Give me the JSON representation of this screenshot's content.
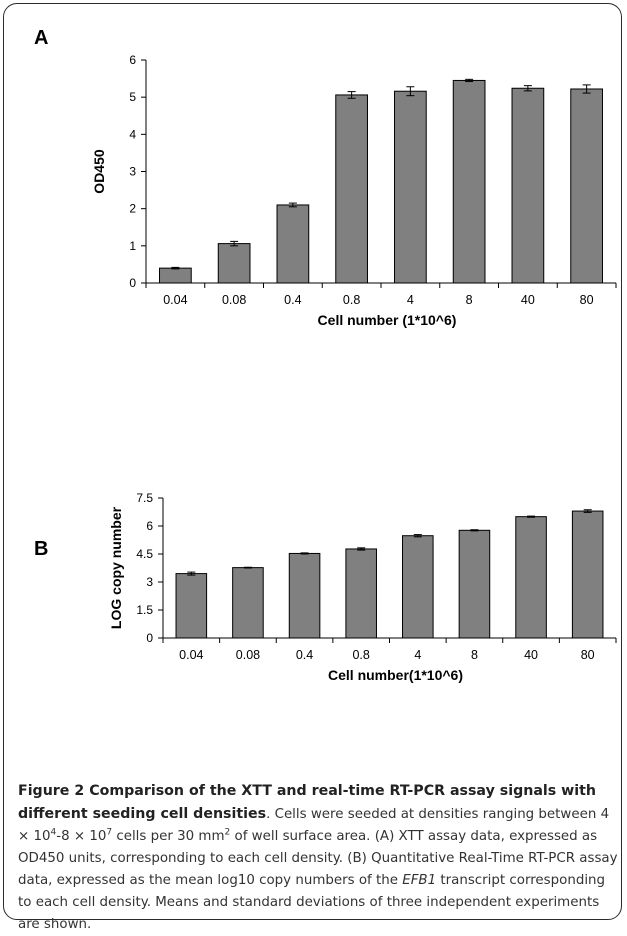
{
  "panels": [
    {
      "letter": "A"
    },
    {
      "letter": "B"
    }
  ],
  "chart_data": [
    {
      "type": "bar",
      "panel": "A",
      "categories": [
        "0.04",
        "0.08",
        "0.4",
        "0.8",
        "4",
        "8",
        "40",
        "80"
      ],
      "values": [
        0.4,
        1.06,
        2.1,
        5.06,
        5.16,
        5.45,
        5.24,
        5.22
      ],
      "errors": [
        0.02,
        0.06,
        0.05,
        0.09,
        0.12,
        0.03,
        0.07,
        0.11
      ],
      "ylim": [
        0,
        6
      ],
      "yticks": [
        "0",
        "1",
        "2",
        "3",
        "4",
        "5",
        "6"
      ],
      "xlabel": "Cell number (1*10^6)",
      "ylabel": "OD450",
      "bar_color": "#808080",
      "grid": false,
      "legend": "none"
    },
    {
      "type": "bar",
      "panel": "B",
      "categories": [
        "0.04",
        "0.08",
        "0.4",
        "0.8",
        "4",
        "8",
        "40",
        "80"
      ],
      "values": [
        3.45,
        3.77,
        4.53,
        4.77,
        5.48,
        5.77,
        6.5,
        6.8
      ],
      "errors": [
        0.08,
        0.02,
        0.03,
        0.06,
        0.06,
        0.03,
        0.03,
        0.07
      ],
      "ylim": [
        0,
        7.5
      ],
      "yticks": [
        "0",
        "1.5",
        "3",
        "4.5",
        "6",
        "7.5"
      ],
      "xlabel": "Cell number(1*10^6)",
      "ylabel": "LOG copy number",
      "bar_color": "#808080",
      "grid": false,
      "legend": "none"
    }
  ],
  "caption": {
    "figure_label": "Figure 2",
    "title": "Comparison of the XTT and real-time RT-PCR assay signals with different seeding cell densities",
    "t1": ". Cells were seeded at densities ranging between 4 × 10",
    "e1": "4",
    "t2": "-8 × 10",
    "e2": "7",
    "t3": " cells per 30 mm",
    "e3": "2",
    "t4": " of well surface area. (A) XTT assay data, expressed as OD450 units, corresponding to each cell density. (B) Quantitative Real-Time RT-PCR assay data, expressed as the mean log10 copy numbers of the ",
    "gene": "EFB1",
    "t5": " transcript corresponding to each cell density. Means and standard deviations of three independent experiments are shown."
  }
}
